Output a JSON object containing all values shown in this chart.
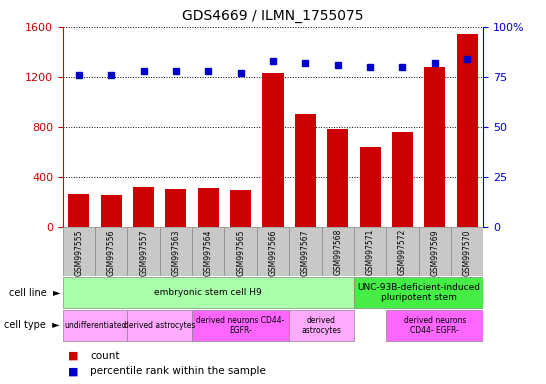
{
  "title": "GDS4669 / ILMN_1755075",
  "samples": [
    "GSM997555",
    "GSM997556",
    "GSM997557",
    "GSM997563",
    "GSM997564",
    "GSM997565",
    "GSM997566",
    "GSM997567",
    "GSM997568",
    "GSM997571",
    "GSM997572",
    "GSM997569",
    "GSM997570"
  ],
  "counts": [
    260,
    255,
    320,
    300,
    310,
    290,
    1230,
    900,
    780,
    640,
    760,
    1280,
    1540
  ],
  "percentiles": [
    76,
    76,
    78,
    78,
    78,
    77,
    83,
    82,
    81,
    80,
    80,
    82,
    84
  ],
  "ylim_left": [
    0,
    1600
  ],
  "ylim_right": [
    0,
    100
  ],
  "yticks_left": [
    0,
    400,
    800,
    1200,
    1600
  ],
  "yticks_right": [
    0,
    25,
    50,
    75,
    100
  ],
  "bar_color": "#cc0000",
  "dot_color": "#0000cc",
  "background_color": "#ffffff",
  "xtick_bg_color": "#c8c8c8",
  "cell_line_groups": [
    {
      "label": "embryonic stem cell H9",
      "start": 0,
      "end": 9,
      "color": "#aaffaa"
    },
    {
      "label": "UNC-93B-deficient-induced\npluripotent stem",
      "start": 9,
      "end": 13,
      "color": "#44ee44"
    }
  ],
  "cell_type_groups": [
    {
      "label": "undifferentiated",
      "start": 0,
      "end": 2,
      "color": "#ffaaff"
    },
    {
      "label": "derived astrocytes",
      "start": 2,
      "end": 4,
      "color": "#ffaaff"
    },
    {
      "label": "derived neurons CD44-\nEGFR-",
      "start": 4,
      "end": 7,
      "color": "#ff66ff"
    },
    {
      "label": "derived\nastrocytes",
      "start": 7,
      "end": 9,
      "color": "#ffaaff"
    },
    {
      "label": "derived neurons\nCD44- EGFR-",
      "start": 10,
      "end": 13,
      "color": "#ff66ff"
    }
  ],
  "left_axis_color": "#cc0000",
  "right_axis_color": "#0000cc",
  "legend_count_color": "#cc0000",
  "legend_pct_color": "#0000cc"
}
